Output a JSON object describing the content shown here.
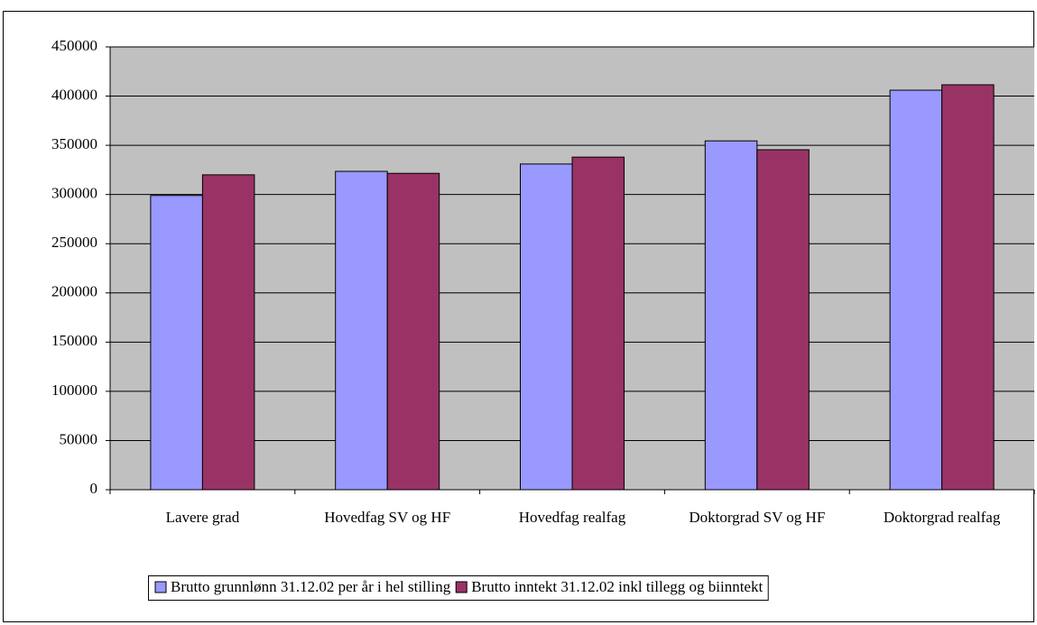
{
  "chart_data": {
    "type": "bar",
    "categories": [
      "Lavere grad",
      "Hovedfag SV og HF",
      "Hovedfag realfag",
      "Doktorgrad SV og HF",
      "Doktorgrad realfag"
    ],
    "series": [
      {
        "name": "Brutto grunnlønn 31.12.02 per år i hel stilling",
        "color": "#9999ff",
        "values": [
          299000,
          323500,
          331000,
          354500,
          406000
        ]
      },
      {
        "name": "Brutto inntekt 31.12.02 inkl tillegg og biinntekt",
        "color": "#993366",
        "values": [
          320000,
          321500,
          338000,
          345500,
          411500
        ]
      }
    ],
    "ylim": [
      0,
      450000
    ],
    "yticks": [
      0,
      50000,
      100000,
      150000,
      200000,
      250000,
      300000,
      350000,
      400000,
      450000
    ],
    "grid": true,
    "plot_background": "#c0c0c0",
    "legend": "bottom"
  }
}
